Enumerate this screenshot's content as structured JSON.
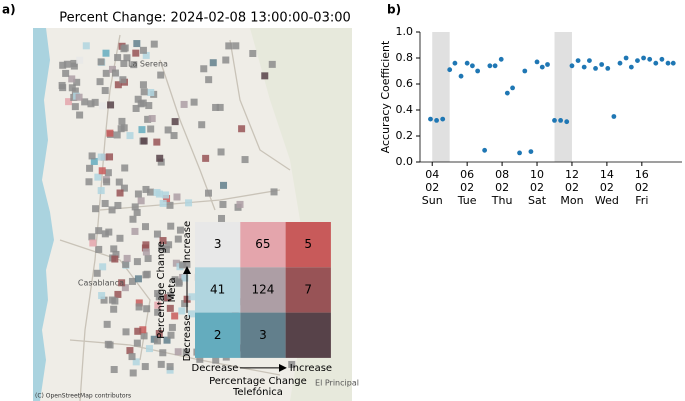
{
  "chart_data": [
    {
      "type": "map",
      "panel_label": "a)",
      "title": "Percent Change: 2024-02-08 13:00:00-03:00",
      "place_labels": [
        "La Serena",
        "Casablanca",
        "El Principal"
      ],
      "attribution": "(C) OpenStreetMap contributors",
      "legend": {
        "x_label": [
          "Percentage Change",
          "Telefónica"
        ],
        "y_label": [
          "Percentage Change",
          "Meta"
        ],
        "x_ends": [
          "Decrease",
          "Increase"
        ],
        "y_ends": [
          "Decrease",
          "Increase"
        ],
        "values": [
          [
            3,
            65,
            5
          ],
          [
            41,
            124,
            7
          ],
          [
            2,
            3,
            null
          ]
        ],
        "colors": [
          [
            "#e8e8e8",
            "#e4a5ac",
            "#c85a5a"
          ],
          [
            "#b0d5df",
            "#ad9ea5",
            "#985356"
          ],
          [
            "#64acbe",
            "#627f8c",
            "#574249"
          ]
        ]
      }
    },
    {
      "type": "scatter",
      "panel_label": "b)",
      "ylabel": "Accuracy Coefficient",
      "color": "#1f77b4",
      "shade_color": "#e0e0e0",
      "shaded": [
        [
          4,
          5
        ],
        [
          11,
          12
        ]
      ],
      "xlim": [
        3.3,
        18.3
      ],
      "xticks": [
        {
          "value": 4,
          "label": [
            "04",
            "02",
            "Sun"
          ]
        },
        {
          "value": 6,
          "label": [
            "06",
            "02",
            "Tue"
          ]
        },
        {
          "value": 8,
          "label": [
            "08",
            "02",
            "Thu"
          ]
        },
        {
          "value": 10,
          "label": [
            "10",
            "02",
            "Sat"
          ]
        },
        {
          "value": 12,
          "label": [
            "12",
            "02",
            "Mon"
          ]
        },
        {
          "value": 14,
          "label": [
            "14",
            "02",
            "Wed"
          ]
        },
        {
          "value": 16,
          "label": [
            "16",
            "02",
            "Fri"
          ]
        }
      ],
      "ylim": [
        0,
        1
      ],
      "yticks": [
        {
          "value": 0,
          "label": "0.0"
        },
        {
          "value": 0.2,
          "label": "0.2"
        },
        {
          "value": 0.4,
          "label": "0.4"
        },
        {
          "value": 0.6,
          "label": "0.6"
        },
        {
          "value": 0.8,
          "label": "0.8"
        },
        {
          "value": 1,
          "label": "1.0"
        }
      ],
      "x": [
        3.9,
        4.25,
        4.6,
        5.0,
        5.3,
        5.65,
        6.0,
        6.3,
        6.6,
        7.0,
        7.3,
        7.6,
        7.95,
        8.3,
        8.6,
        9.0,
        9.3,
        9.65,
        10.0,
        10.3,
        10.6,
        11.0,
        11.35,
        11.7,
        12.0,
        12.35,
        12.7,
        13.0,
        13.35,
        13.7,
        14.05,
        14.4,
        14.75,
        15.1,
        15.4,
        15.75,
        16.1,
        16.45,
        16.8,
        17.15,
        17.5,
        17.8
      ],
      "values": [
        0.33,
        0.32,
        0.33,
        0.71,
        0.76,
        0.66,
        0.76,
        0.74,
        0.7,
        0.09,
        0.74,
        0.74,
        0.79,
        0.53,
        0.57,
        0.07,
        0.7,
        0.08,
        0.77,
        0.73,
        0.75,
        0.32,
        0.32,
        0.31,
        0.74,
        0.78,
        0.73,
        0.78,
        0.72,
        0.75,
        0.72,
        0.35,
        0.76,
        0.8,
        0.73,
        0.78,
        0.8,
        0.79,
        0.76,
        0.79,
        0.76,
        0.76
      ]
    }
  ]
}
